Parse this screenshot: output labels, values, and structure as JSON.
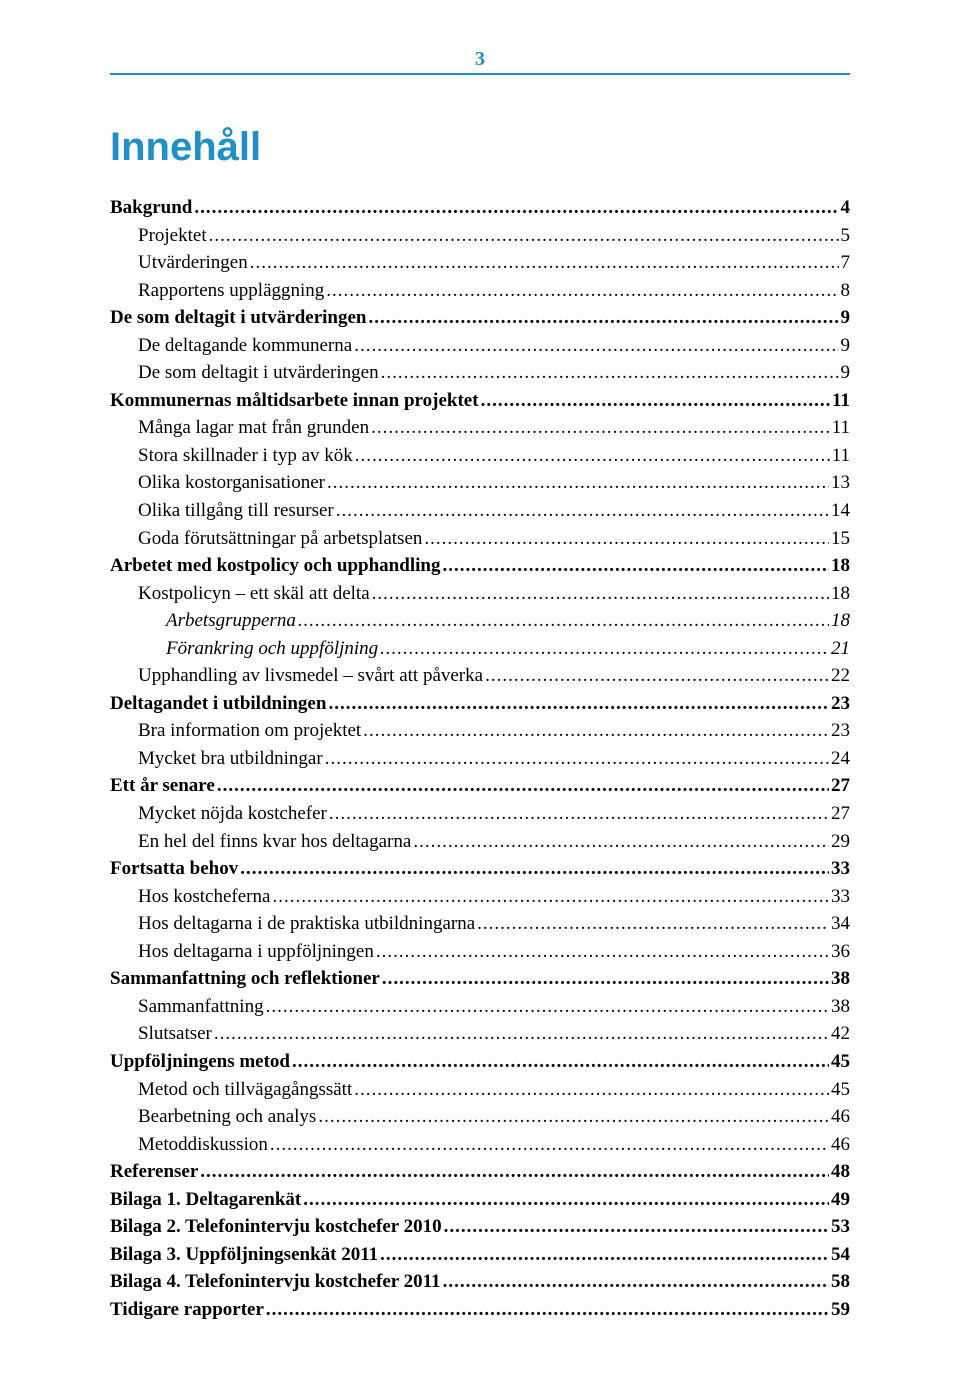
{
  "page_number": "3",
  "page_number_color": "#1f8fc6",
  "rule_color": "#1f8fc6",
  "title": "Innehåll",
  "title_color": "#1f8fc6",
  "toc": [
    {
      "level": 0,
      "label": "Bakgrund",
      "page": "4"
    },
    {
      "level": 1,
      "label": "Projektet",
      "page": "5"
    },
    {
      "level": 1,
      "label": "Utvärderingen",
      "page": "7"
    },
    {
      "level": 1,
      "label": "Rapportens uppläggning",
      "page": "8"
    },
    {
      "level": 0,
      "label": "De som deltagit i utvärderingen",
      "page": "9"
    },
    {
      "level": 1,
      "label": "De deltagande kommunerna",
      "page": "9"
    },
    {
      "level": 1,
      "label": "De som deltagit i utvärderingen",
      "page": "9"
    },
    {
      "level": 0,
      "label": "Kommunernas måltidsarbete innan projektet",
      "page": "11"
    },
    {
      "level": 1,
      "label": "Många lagar mat från grunden",
      "page": "11"
    },
    {
      "level": 1,
      "label": "Stora skillnader i typ av kök",
      "page": "11"
    },
    {
      "level": 1,
      "label": "Olika kostorganisationer",
      "page": "13"
    },
    {
      "level": 1,
      "label": "Olika tillgång till resurser",
      "page": "14"
    },
    {
      "level": 1,
      "label": "Goda förutsättningar på arbetsplatsen",
      "page": "15"
    },
    {
      "level": 0,
      "label": "Arbetet med kostpolicy och upphandling",
      "page": "18"
    },
    {
      "level": 1,
      "label": "Kostpolicyn – ett skäl att delta",
      "page": "18"
    },
    {
      "level": 2,
      "label": "Arbetsgrupperna",
      "page": "18"
    },
    {
      "level": 2,
      "label": "Förankring och uppföljning",
      "page": "21"
    },
    {
      "level": 1,
      "label": "Upphandling av livsmedel – svårt att påverka",
      "page": "22"
    },
    {
      "level": 0,
      "label": "Deltagandet i utbildningen",
      "page": "23"
    },
    {
      "level": 1,
      "label": "Bra information om projektet",
      "page": "23"
    },
    {
      "level": 1,
      "label": "Mycket bra utbildningar",
      "page": "24"
    },
    {
      "level": 0,
      "label": "Ett år senare",
      "page": "27"
    },
    {
      "level": 1,
      "label": "Mycket nöjda kostchefer",
      "page": "27"
    },
    {
      "level": 1,
      "label": "En hel del finns kvar hos deltagarna",
      "page": "29"
    },
    {
      "level": 0,
      "label": "Fortsatta behov",
      "page": "33"
    },
    {
      "level": 1,
      "label": "Hos kostcheferna",
      "page": "33"
    },
    {
      "level": 1,
      "label": "Hos deltagarna i de praktiska utbildningarna",
      "page": "34"
    },
    {
      "level": 1,
      "label": "Hos deltagarna i uppföljningen",
      "page": "36"
    },
    {
      "level": 0,
      "label": "Sammanfattning och reflektioner",
      "page": "38"
    },
    {
      "level": 1,
      "label": "Sammanfattning",
      "page": "38"
    },
    {
      "level": 1,
      "label": "Slutsatser",
      "page": "42"
    },
    {
      "level": 0,
      "label": "Uppföljningens metod",
      "page": "45"
    },
    {
      "level": 1,
      "label": "Metod och tillvägagångssätt",
      "page": "45"
    },
    {
      "level": 1,
      "label": "Bearbetning och analys",
      "page": "46"
    },
    {
      "level": 1,
      "label": "Metoddiskussion",
      "page": "46"
    },
    {
      "level": 0,
      "label": "Referenser",
      "page": "48"
    },
    {
      "level": 0,
      "label": "Bilaga 1. Deltagarenkät",
      "page": "49"
    },
    {
      "level": 0,
      "label": "Bilaga 2. Telefonintervju kostchefer 2010",
      "page": "53"
    },
    {
      "level": 0,
      "label": "Bilaga 3. Uppföljningsenkät 2011",
      "page": "54"
    },
    {
      "level": 0,
      "label": "Bilaga 4. Telefonintervju kostchefer 2011",
      "page": "58"
    },
    {
      "level": 0,
      "label": "Tidigare rapporter",
      "page": "59"
    }
  ]
}
